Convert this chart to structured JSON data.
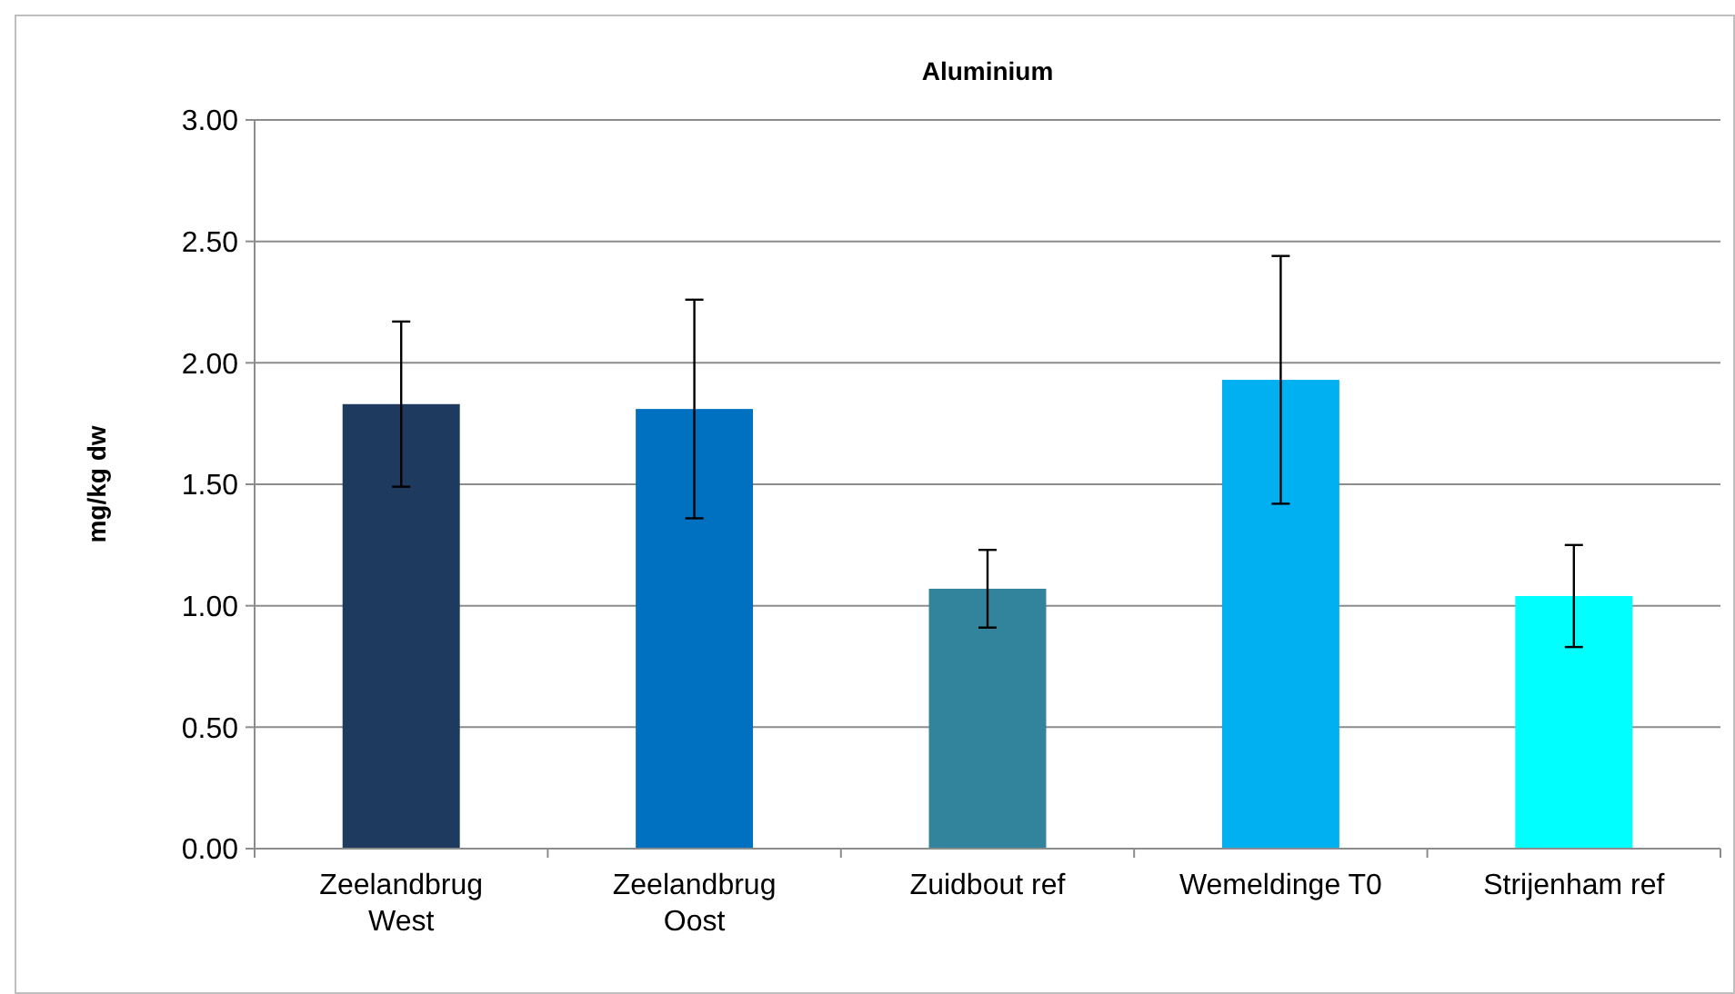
{
  "chart_data": {
    "type": "bar",
    "title": "Aluminium",
    "ylabel": "mg/kg dw",
    "categories": [
      "Zeelandbrug West",
      "Zeelandbrug Oost",
      "Zuidbout ref",
      "Wemeldinge T0",
      "Strijenham ref"
    ],
    "values": [
      1.83,
      1.81,
      1.07,
      1.93,
      1.04
    ],
    "errors": [
      0.34,
      0.45,
      0.16,
      0.51,
      0.21
    ],
    "colors": [
      "#1f3a5f",
      "#0070c0",
      "#31849b",
      "#00b0f0",
      "#00ffff"
    ],
    "ylim": [
      0,
      3
    ],
    "yticks": [
      {
        "value": 0,
        "label": "0.00"
      },
      {
        "value": 0.5,
        "label": "0.50"
      },
      {
        "value": 1,
        "label": "1.00"
      },
      {
        "value": 1.5,
        "label": "1.50"
      },
      {
        "value": 2,
        "label": "2.00"
      },
      {
        "value": 2.5,
        "label": "2.50"
      },
      {
        "value": 3,
        "label": "3.00"
      }
    ],
    "grid": true
  }
}
